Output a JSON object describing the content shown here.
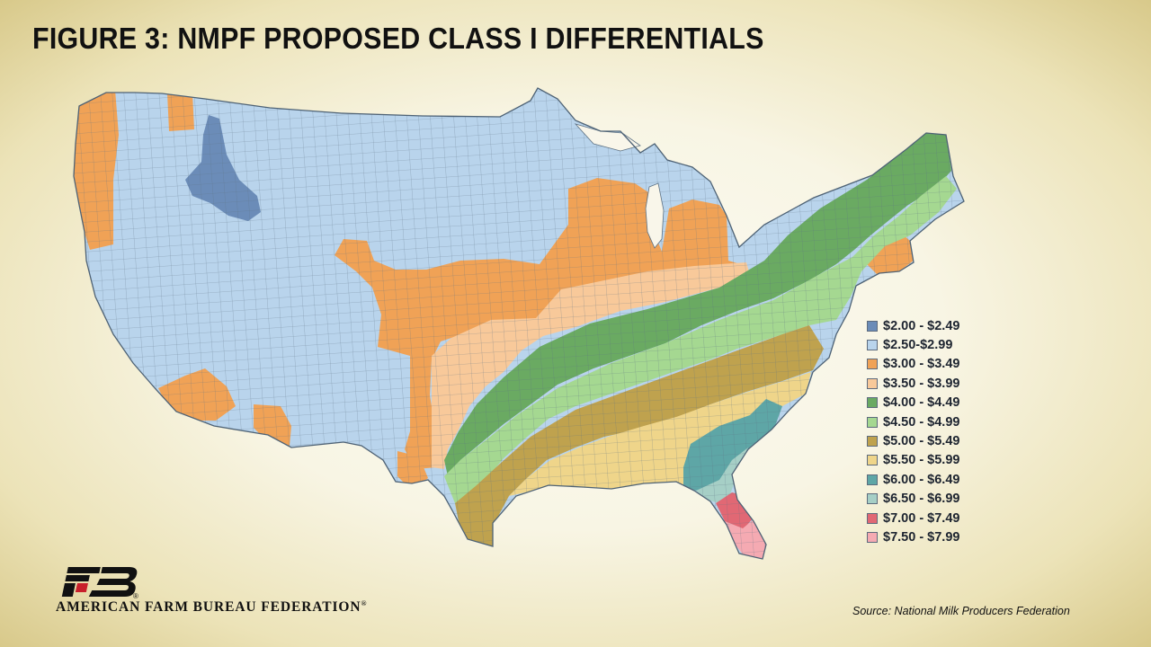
{
  "title": "FIGURE 3: NMPF PROPOSED CLASS I DIFFERENTIALS",
  "legend": [
    {
      "label": "$2.00 - $2.49",
      "color": "#6b8cb8"
    },
    {
      "label": "$2.50-$2.99",
      "color": "#b9d4ec"
    },
    {
      "label": "$3.00 - $3.49",
      "color": "#f0a256"
    },
    {
      "label": "$3.50 - $3.99",
      "color": "#f8c99a"
    },
    {
      "label": "$4.00 - $4.49",
      "color": "#6aaa62"
    },
    {
      "label": "$4.50 - $4.99",
      "color": "#a5d891"
    },
    {
      "label": "$5.00 - $5.49",
      "color": "#bfa24e"
    },
    {
      "label": "$5.50 - $5.99",
      "color": "#efd58a"
    },
    {
      "label": "$6.00 - $6.49",
      "color": "#5ea6a6"
    },
    {
      "label": "$6.50 - $6.99",
      "color": "#a6cfc6"
    },
    {
      "label": "$7.00 - $7.49",
      "color": "#e16874"
    },
    {
      "label": "$7.50 - $7.99",
      "color": "#f5aab2"
    }
  ],
  "logo_text": "FB",
  "organization": "AMERICAN FARM BUREAU FEDERATION",
  "registered_mark": "®",
  "source": "Source: National Milk Producers Federation"
}
